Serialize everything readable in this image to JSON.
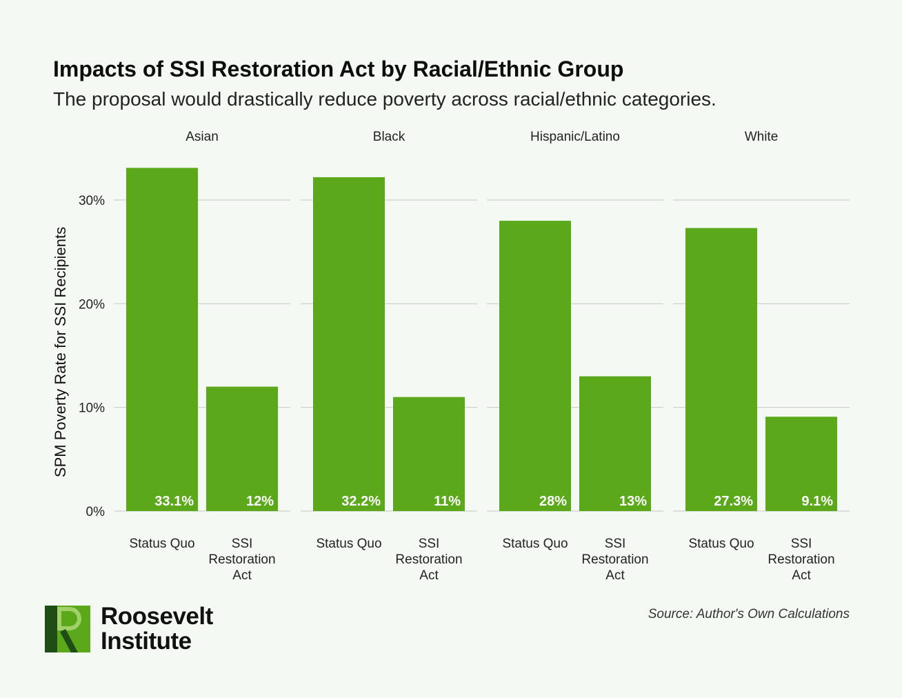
{
  "title": "Impacts of SSI Restoration Act by Racial/Ethnic Group",
  "subtitle": "The proposal would drastically reduce poverty across racial/ethnic categories.",
  "source": "Source: Author's Own Calculations",
  "logo": {
    "line1": "Roosevelt",
    "line2": "Institute"
  },
  "colors": {
    "bar": "#5ba81b",
    "grid": "#c8c8c8",
    "background": "#f5f9f3"
  },
  "chart_data": {
    "type": "bar",
    "ylabel": "SPM Poverty Rate for SSI Recipients",
    "ylim": [
      0,
      35
    ],
    "yticks": [
      0,
      10,
      20,
      30
    ],
    "ytick_labels": [
      "0%",
      "10%",
      "20%",
      "30%"
    ],
    "grid": true,
    "categories": [
      "Status Quo",
      "SSI Restoration Act"
    ],
    "panels": [
      {
        "name": "Asian",
        "values": [
          33.1,
          12
        ],
        "labels": [
          "33.1%",
          "12%"
        ]
      },
      {
        "name": "Black",
        "values": [
          32.2,
          11
        ],
        "labels": [
          "32.2%",
          "11%"
        ]
      },
      {
        "name": "Hispanic/Latino",
        "values": [
          28,
          13
        ],
        "labels": [
          "28%",
          "13%"
        ]
      },
      {
        "name": "White",
        "values": [
          27.3,
          9.1
        ],
        "labels": [
          "27.3%",
          "9.1%"
        ]
      }
    ]
  }
}
